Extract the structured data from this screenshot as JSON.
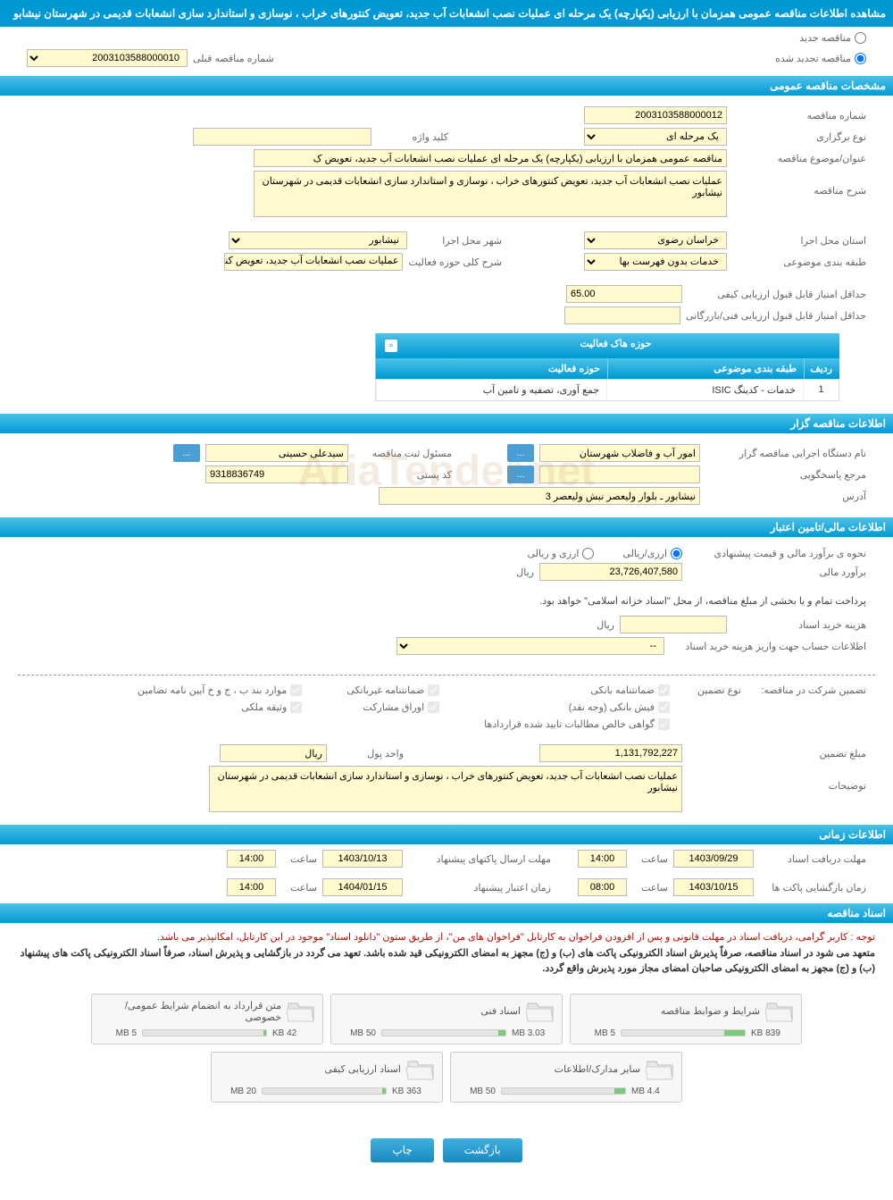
{
  "header": {
    "title": "مشاهده اطلاعات مناقصه عمومی همزمان با ارزیابی (یکپارچه) یک مرحله ای عملیات نصب انشعابات آب جدید، تعویض کنتورهای خراب ، نوسازی و استاندارد سازی انشعابات قدیمی در شهرستان نیشابو"
  },
  "radios": {
    "new_tender": "مناقصه جدید",
    "renewed_tender": "مناقصه تجدید شده"
  },
  "prev_number": {
    "label": "شماره مناقصه قبلی",
    "value": "2003103588000010"
  },
  "sections": {
    "general": "مشخصات مناقصه عمومی",
    "organizer": "اطلاعات مناقصه گزار",
    "financial": "اطلاعات مالی/تامین اعتبار",
    "timing": "اطلاعات زمانی",
    "documents": "اسناد مناقصه"
  },
  "general": {
    "tender_number_label": "شماره مناقصه",
    "tender_number": "2003103588000012",
    "keyword_label": "کلید واژه",
    "keyword": "",
    "holding_type_label": "نوع برگزاری",
    "holding_type": "یک مرحله ای",
    "subject_label": "عنوان/موضوع مناقصه",
    "subject": "مناقصه عمومی همزمان با ارزیابی (یکپارچه) یک مرحله ای عملیات نصب انشعابات آب جدید، تعویض ک",
    "description_label": "شرح مناقصه",
    "description": "عملیات نصب انشعابات آب جدید، تعویض کنتورهای خراب ، نوسازی و استاندارد سازی انشعابات قدیمی در شهرستان نیشابور",
    "province_label": "استان محل اجرا",
    "province": "خراسان رضوی",
    "city_label": "شهر محل اجرا",
    "city": "نیشابور",
    "classification_label": "طبقه بندی موضوعی",
    "classification": "خدمات بدون فهرست بها",
    "activity_desc_label": "شرح کلی حوزه فعالیت",
    "activity_desc": "عملیات نصب انشعابات آب جدید، تعویض کنتورهای",
    "min_quality_score_label": "حداقل امتیاز قابل قبول ارزیابی کیفی",
    "min_quality_score": "65.00",
    "min_tech_score_label": "حداقل امتیاز قابل قبول ارزیابی فنی/بازرگانی",
    "min_tech_score": ""
  },
  "activity_table": {
    "title": "حوزه هاک فعالیت",
    "col_row": "ردیف",
    "col_class": "طبقه بندی موضوعی",
    "col_field": "حوزه فعالیت",
    "row1_num": "1",
    "row1_class": "خدمات - کدینگ ISIC",
    "row1_field": "جمع آوری، تصفیه و تامین آب"
  },
  "organizer": {
    "agency_label": "نام دستگاه اجرایی مناقصه گزار",
    "agency": "امور آب و فاضلاب شهرستان",
    "reg_officer_label": "مسئول ثبت مناقصه",
    "reg_officer": "سیدعلی حسینی",
    "response_label": "مرجع پاسخگویی",
    "response": "",
    "postal_label": "کد پستی",
    "postal": "9318836749",
    "address_label": "آدرس",
    "address": "نیشابور ـ بلوار ولیعصر نبش ولیعصر 3"
  },
  "financial": {
    "estimate_method_label": "نحوه ی برآورد مالی و قیمت پیشنهادی",
    "currency_rial": "ارزی/ریالی",
    "currency_both": "ارزی و ریالی",
    "estimate_label": "برآورد مالی",
    "estimate_value": "23,726,407,580",
    "unit_rial": "ریال",
    "treasury_note": "پرداخت تمام و یا بخشی از مبلغ مناقصه، از محل \"اسناد خزانه اسلامی\" خواهد بود.",
    "doc_cost_label": "هزینه خرید اسناد",
    "doc_cost": "",
    "account_info_label": "اطلاعات حساب جهت واریز هزینه خرید اسناد",
    "account_info": "--",
    "participation_label": "تضمین شرکت در مناقصه:",
    "guarantee_type_label": "نوع تضمین",
    "check_bank_guarantee": "ضمانتنامه بانکی",
    "check_nonbank_guarantee": "ضمانتنامه غیربانکی",
    "check_bylaw": "موارد بند ب ، ج و خ آیین نامه تضامین",
    "check_cash": "فیش بانکی (وجه نقد)",
    "check_participation": "اوراق مشارکت",
    "check_property": "وثیقه ملکی",
    "check_receivables": "گواهی خالص مطالبات تایید شده قراردادها",
    "guarantee_amount_label": "مبلغ تضمین",
    "guarantee_amount": "1,131,792,227",
    "currency_unit_label": "واحد پول",
    "notes_label": "توضیحات",
    "notes": "عملیات نصب انشعابات آب جدید، تعویض کنتورهای خراب ، نوسازی و استاندارد سازی انشعابات قدیمی در شهرستان نیشابور"
  },
  "timing": {
    "doc_deadline_label": "مهلت دریافت اسناد",
    "doc_deadline_date": "1403/09/29",
    "time_label": "ساعت",
    "doc_deadline_time": "14:00",
    "proposal_deadline_label": "مهلت ارسال پاکتهای پیشنهاد",
    "proposal_deadline_date": "1403/10/13",
    "proposal_deadline_time": "14:00",
    "opening_label": "زمان بازگشایی پاکت ها",
    "opening_date": "1403/10/15",
    "opening_time": "08:00",
    "validity_label": "زمان اعتبار پیشنهاد",
    "validity_date": "1404/01/15",
    "validity_time": "14:00"
  },
  "notices": {
    "line1": "توجه : کاربر گرامی، دریافت اسناد در مهلت قانونی و پس از افزودن فراخوان به کارتابل \"فراخوان های من\"، از طریق ستون \"دانلود اسناد\" موجود در این کارتابل، امکانپذیر می باشد.",
    "line2": "متعهد می شود در اسناد مناقصه، صرفاً پذیرش اسناد الکترونیکی پاکت های (ب) و (ج) مجهز به امضای الکترونیکی قید شده باشد. تعهد می گردد در بازگشایی و پذیرش اسناد، صرفاً اسناد الکترونیکی پاکت های پیشنهاد (ب) و (ج) مجهز به امضای الکترونیکی صاحبان امضای مجاز مورد پذیرش واقع گردد."
  },
  "documents": [
    {
      "title": "شرایط و ضوابط مناقصه",
      "current": "839 KB",
      "max": "5 MB",
      "pct": 17
    },
    {
      "title": "اسناد فنی",
      "current": "3.03 MB",
      "max": "50 MB",
      "pct": 6
    },
    {
      "title": "متن قرارداد به انضمام شرایط عمومی/خصوصی",
      "current": "42 KB",
      "max": "5 MB",
      "pct": 2
    },
    {
      "title": "سایر مدارک/اطلاعات",
      "current": "4.4 MB",
      "max": "50 MB",
      "pct": 9
    },
    {
      "title": "اسناد ارزیابی کیفی",
      "current": "363 KB",
      "max": "20 MB",
      "pct": 3
    }
  ],
  "buttons": {
    "back": "بازگشت",
    "print": "چاپ",
    "dots": "..."
  },
  "watermark": "AriaTender.net"
}
